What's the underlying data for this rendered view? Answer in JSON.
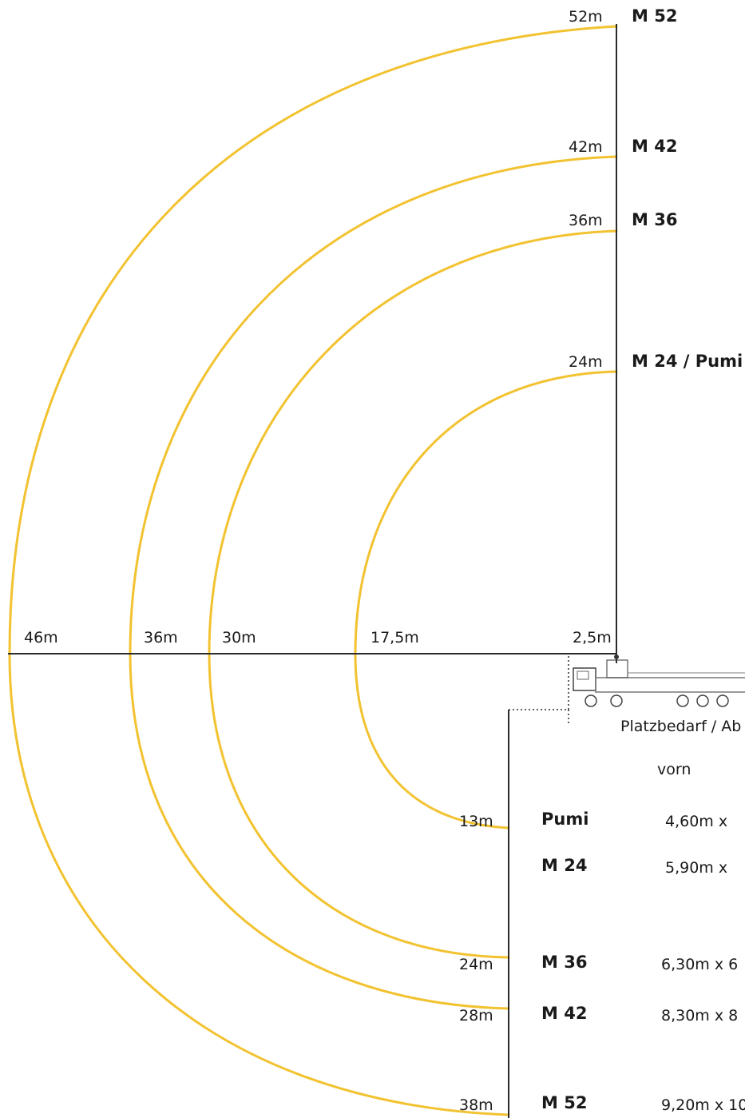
{
  "colors": {
    "arc": "#f2c230",
    "axis": "#2b2b2b"
  },
  "upper_labels": [
    {
      "reach": "52m",
      "model": "M 52"
    },
    {
      "reach": "42m",
      "model": "M 42"
    },
    {
      "reach": "36m",
      "model": "M 36"
    },
    {
      "reach": "24m",
      "model": "M 24 / Pumi"
    }
  ],
  "horizontal_labels": [
    "46m",
    "36m",
    "30m",
    "17,5m",
    "2,5m"
  ],
  "lower_labels": [
    {
      "reach": "13m",
      "model": "Pumi",
      "space": "4,60m  x"
    },
    {
      "reach": "",
      "model": "M 24",
      "space": "5,90m  x"
    },
    {
      "reach": "24m",
      "model": "M 36",
      "space": "6,30m  x  6"
    },
    {
      "reach": "28m",
      "model": "M 42",
      "space": "8,30m  x  8"
    },
    {
      "reach": "38m",
      "model": "M 52",
      "space": "9,20m x 10"
    }
  ],
  "table_title": "Platzbedarf / Ab",
  "table_column": "vorn",
  "icons": {
    "truck": "concrete-pump-truck-icon"
  }
}
